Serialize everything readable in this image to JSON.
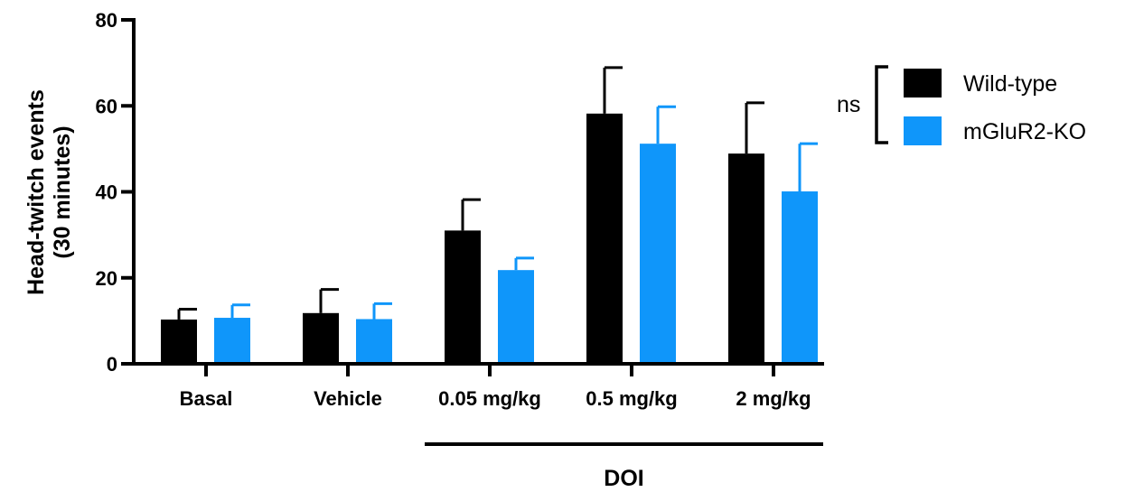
{
  "chart_data": {
    "type": "bar",
    "ylabel": [
      "Head-twitch events",
      "(30 minutes)"
    ],
    "ylim": [
      0,
      80
    ],
    "yticks": [
      0,
      20,
      40,
      60,
      80
    ],
    "categories": [
      "Basal",
      "Vehicle",
      "0.05 mg/kg",
      "0.5 mg/kg",
      "2 mg/kg"
    ],
    "series": [
      {
        "name": "Wild-type",
        "color": "#000000",
        "values": [
          10.3,
          11.8,
          31.0,
          58.2,
          48.9
        ],
        "errors": [
          2.4,
          5.5,
          7.2,
          10.7,
          11.8
        ]
      },
      {
        "name": "mGluR2-KO",
        "color": "#0f96fa",
        "values": [
          10.7,
          10.4,
          21.8,
          51.2,
          40.1
        ],
        "errors": [
          3.0,
          3.6,
          2.8,
          8.6,
          11.1
        ]
      }
    ],
    "group_label": "DOI",
    "group_categories": [
      "0.05 mg/kg",
      "0.5 mg/kg",
      "2 mg/kg"
    ],
    "significance_text": "ns",
    "legend_position": "right",
    "grid": false
  }
}
